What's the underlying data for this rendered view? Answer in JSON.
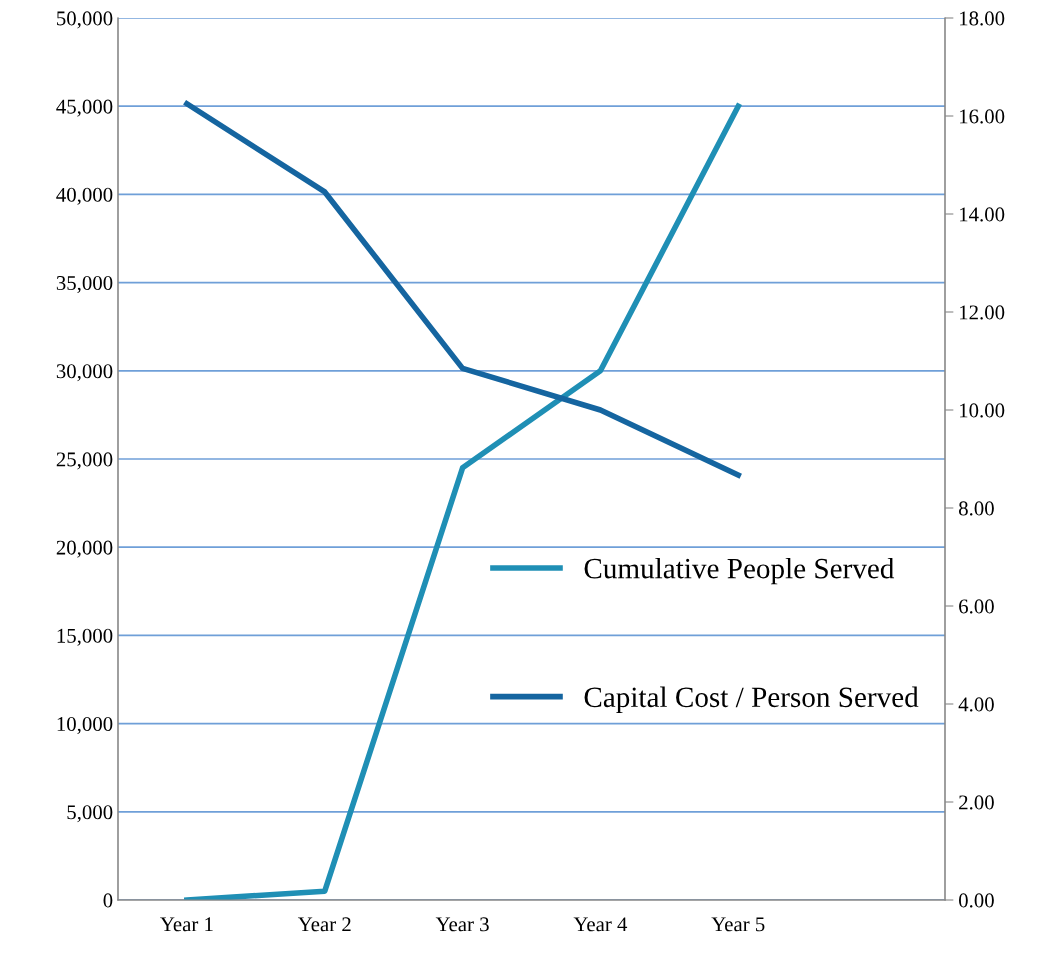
{
  "chart_data": {
    "type": "line",
    "categories": [
      "Year 1",
      "Year 2",
      "Year 3",
      "Year 4",
      "Year 5",
      null
    ],
    "series": [
      {
        "name": "Cumulative People Served",
        "color": "#1f8fb5",
        "values": [
          0,
          500,
          24500,
          30000,
          45000,
          null
        ]
      },
      {
        "name": "Capital Cost / Person Served",
        "color": "#1565a0",
        "axis": "y2",
        "values": [
          16.25,
          14.45,
          10.85,
          10.0,
          8.67,
          null
        ]
      }
    ],
    "ylim": [
      0,
      50000
    ],
    "yticks": [
      {
        "value": 0,
        "label": "0"
      },
      {
        "value": 5000,
        "label": "5,000"
      },
      {
        "value": 10000,
        "label": "10,000"
      },
      {
        "value": 15000,
        "label": "15,000"
      },
      {
        "value": 20000,
        "label": "20,000"
      },
      {
        "value": 25000,
        "label": "25,000"
      },
      {
        "value": 30000,
        "label": "30,000"
      },
      {
        "value": 35000,
        "label": "35,000"
      },
      {
        "value": 40000,
        "label": "40,000"
      },
      {
        "value": 45000,
        "label": "45,000"
      },
      {
        "value": 50000,
        "label": "50,000"
      }
    ],
    "y2lim": [
      0,
      18
    ],
    "y2ticks": [
      {
        "value": 0,
        "label": "0.00"
      },
      {
        "value": 2,
        "label": "2.00"
      },
      {
        "value": 4,
        "label": "4.00"
      },
      {
        "value": 6,
        "label": "6.00"
      },
      {
        "value": 8,
        "label": "8.00"
      },
      {
        "value": 10,
        "label": "10.00"
      },
      {
        "value": 12,
        "label": "12.00"
      },
      {
        "value": 14,
        "label": "14.00"
      },
      {
        "value": 16,
        "label": "16.00"
      },
      {
        "value": 18,
        "label": "18.00"
      }
    ],
    "grid": "y",
    "legend": "right",
    "marker": "none",
    "line_style": "solid"
  }
}
